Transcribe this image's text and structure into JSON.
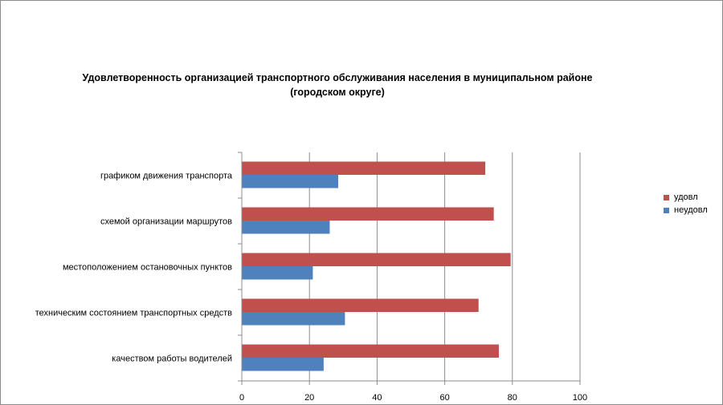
{
  "chart_data": {
    "type": "bar",
    "orientation": "horizontal",
    "title_line1": "Удовлетворенность организацией транспортного обслуживания населения в муниципальном районе",
    "title_line2": "(городском округе)",
    "categories": [
      "графиком движения транспорта",
      "схемой организации маршрутов",
      "местоположением остановочных пунктов",
      "техническим состоянием транспортных средств",
      "качеством работы водителей"
    ],
    "series": [
      {
        "name": "удовл",
        "color": "#c0504d",
        "values": [
          72,
          74.5,
          79.5,
          70,
          76
        ]
      },
      {
        "name": "неудовл",
        "color": "#4f81bd",
        "values": [
          28.5,
          26,
          21,
          30.5,
          24.2
        ]
      }
    ],
    "xlim": [
      0,
      100
    ],
    "xticks": [
      "0",
      "20",
      "40",
      "60",
      "80",
      "100"
    ],
    "grid": true,
    "legend_position": "right"
  }
}
